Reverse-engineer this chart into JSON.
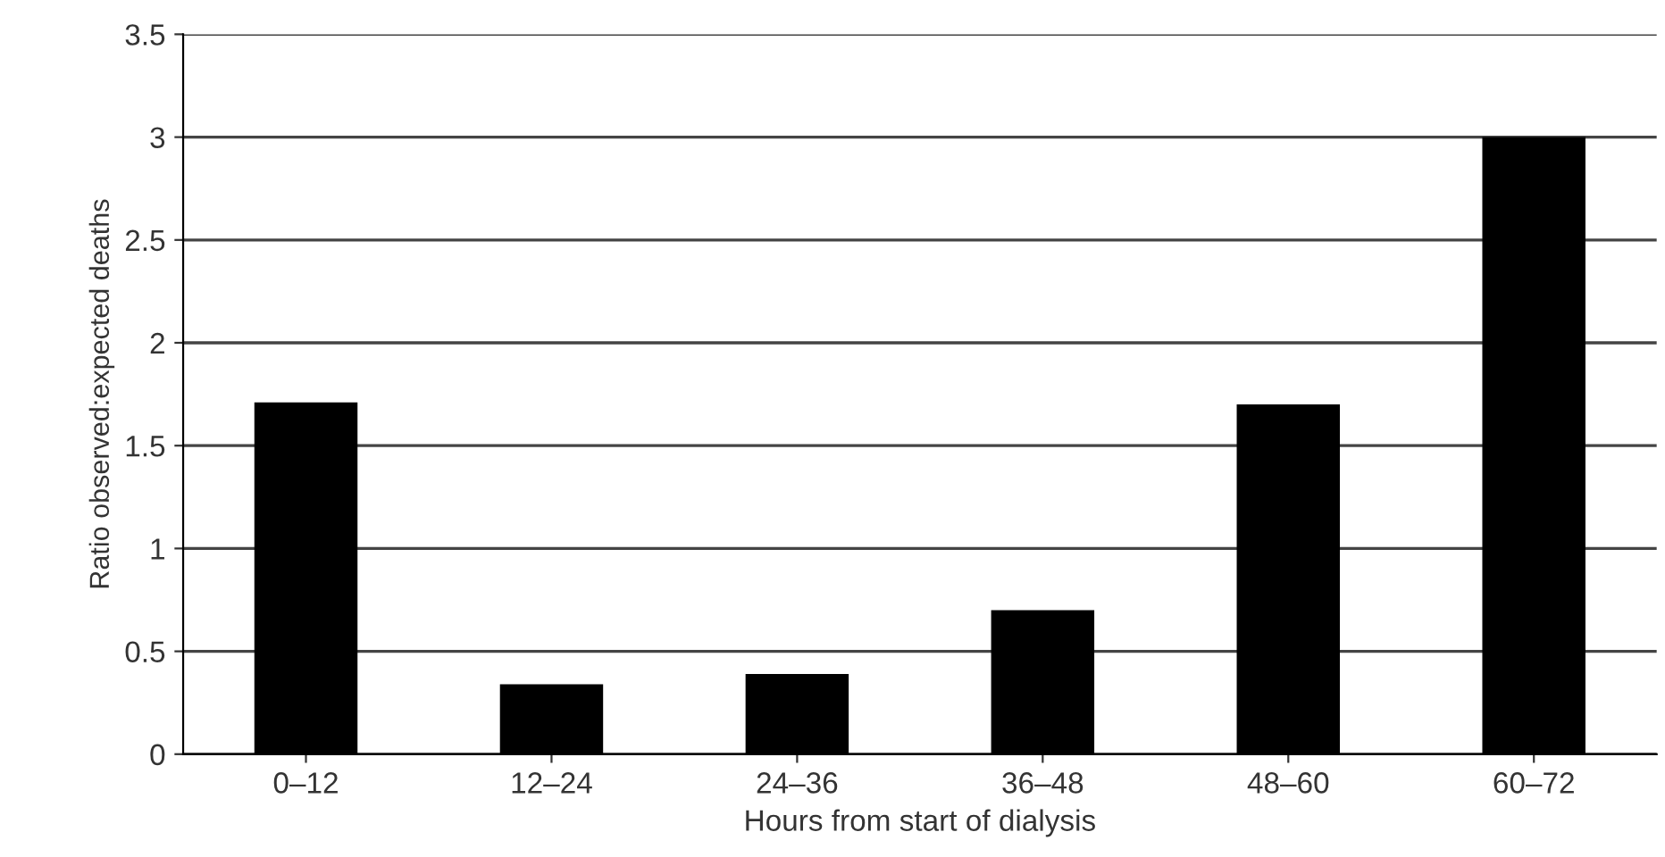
{
  "chart_data": {
    "type": "bar",
    "xlabel": "Hours from start of dialysis",
    "ylabel": "Ratio observed:expected deaths",
    "categories": [
      "0–12",
      "12–24",
      "24–36",
      "36–48",
      "48–60",
      "60–72"
    ],
    "values": [
      1.71,
      0.34,
      0.39,
      0.7,
      1.7,
      3.0
    ],
    "color": "#000000",
    "ylim": [
      0,
      3.5
    ],
    "yticks": [
      0,
      0.5,
      1,
      1.5,
      2,
      2.5,
      3,
      3.5
    ],
    "grid": "y"
  }
}
